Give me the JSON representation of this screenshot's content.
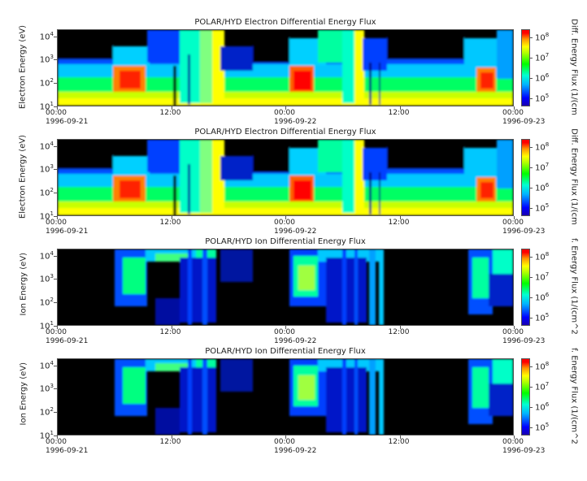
{
  "chart_data": [
    {
      "type": "heatmap",
      "title": "POLAR/HYD  Electron Differential Energy Flux",
      "ylabel": "Electron Energy (eV)",
      "yscale": "log",
      "ylim": [
        10,
        20000
      ],
      "yticks": [
        "10",
        "10",
        "10",
        "10"
      ],
      "yticks_exp": [
        "1",
        "2",
        "3",
        "4"
      ],
      "xticks": [
        [
          "00:00",
          "1996-09-21"
        ],
        [
          "12:00",
          ""
        ],
        [
          "00:00",
          "1996-09-22"
        ],
        [
          "12:00",
          ""
        ],
        [
          "00:00",
          "1996-09-23"
        ]
      ],
      "colorbar_label": "Diff. Energy Flux (1/(cm",
      "colorbar_ticks": [
        "10",
        "10",
        "10",
        "10"
      ],
      "colorbar_ticks_exp": [
        "5",
        "6",
        "7",
        "8"
      ],
      "colorscale": "jet"
    },
    {
      "type": "heatmap",
      "title": "POLAR/HYD  Electron Differential Energy Flux",
      "ylabel": "Electron Energy (eV)",
      "yscale": "log",
      "ylim": [
        10,
        20000
      ],
      "yticks": [
        "10",
        "10",
        "10",
        "10"
      ],
      "yticks_exp": [
        "1",
        "2",
        "3",
        "4"
      ],
      "xticks": [
        [
          "00:00",
          "1996-09-21"
        ],
        [
          "12:00",
          ""
        ],
        [
          "00:00",
          "1996-09-22"
        ],
        [
          "12:00",
          ""
        ],
        [
          "00:00",
          "1996-09-23"
        ]
      ],
      "colorbar_label": "Diff. Energy Flux (1/(cm",
      "colorbar_ticks": [
        "10",
        "10",
        "10",
        "10"
      ],
      "colorbar_ticks_exp": [
        "5",
        "6",
        "7",
        "8"
      ],
      "colorscale": "jet"
    },
    {
      "type": "heatmap",
      "title": "POLAR/HYD  Ion Differential Energy Flux",
      "ylabel": "Ion Energy (eV)",
      "yscale": "log",
      "ylim": [
        10,
        20000
      ],
      "yticks": [
        "10",
        "10",
        "10",
        "10"
      ],
      "yticks_exp": [
        "1",
        "2",
        "3",
        "4"
      ],
      "xticks": [
        [
          "00:00",
          "1996-09-21"
        ],
        [
          "12:00",
          ""
        ],
        [
          "00:00",
          "1996-09-22"
        ],
        [
          "12:00",
          ""
        ],
        [
          "00:00",
          "1996-09-23"
        ]
      ],
      "colorbar_label": "f. Energy Flux (1/(cm^2",
      "colorbar_ticks": [
        "10",
        "10",
        "10",
        "10"
      ],
      "colorbar_ticks_exp": [
        "5",
        "6",
        "7",
        "8"
      ],
      "colorscale": "jet"
    },
    {
      "type": "heatmap",
      "title": "POLAR/HYD  Ion Differential Energy Flux",
      "ylabel": "Ion Energy (eV)",
      "yscale": "log",
      "ylim": [
        10,
        20000
      ],
      "yticks": [
        "10",
        "10",
        "10",
        "10"
      ],
      "yticks_exp": [
        "1",
        "2",
        "3",
        "4"
      ],
      "xticks": [
        [
          "00:00",
          "1996-09-21"
        ],
        [
          "12:00",
          ""
        ],
        [
          "00:00",
          "1996-09-22"
        ],
        [
          "12:00",
          ""
        ],
        [
          "00:00",
          "1996-09-23"
        ]
      ],
      "colorbar_label": "f. Energy Flux (1/(cm^2",
      "colorbar_ticks": [
        "10",
        "10",
        "10",
        "10"
      ],
      "colorbar_ticks_exp": [
        "5",
        "6",
        "7",
        "8"
      ],
      "colorscale": "jet"
    }
  ]
}
